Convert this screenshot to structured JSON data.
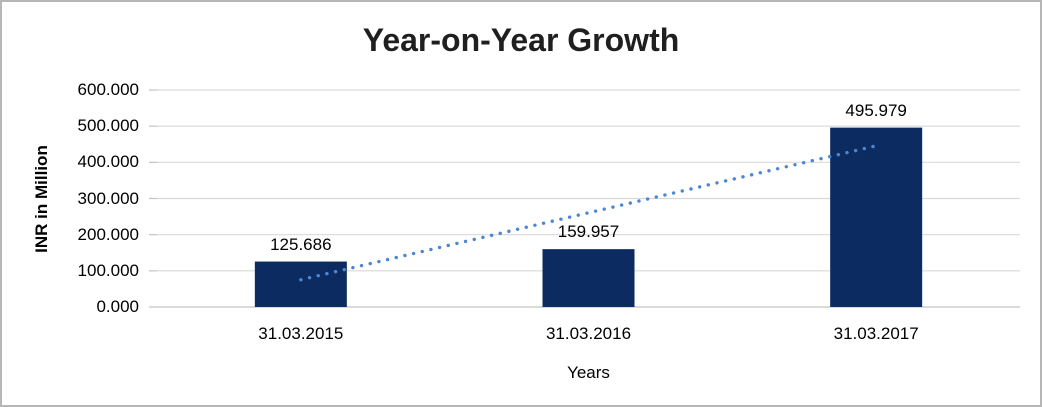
{
  "chart_data": {
    "type": "bar",
    "title": "Year-on-Year Growth",
    "xlabel": "Years",
    "ylabel": "INR in Million",
    "categories": [
      "31.03.2015",
      "31.03.2016",
      "31.03.2017"
    ],
    "values": [
      125.686,
      159.957,
      495.979
    ],
    "data_labels": [
      "125.686",
      "159.957",
      "495.979"
    ],
    "y_ticks": [
      "0.000",
      "100.000",
      "200.000",
      "300.000",
      "400.000",
      "500.000",
      "600.000"
    ],
    "ylim": [
      0,
      600
    ],
    "grid": true,
    "legend": "none",
    "bar_color": "#0c2b61",
    "gridline_color": "#d9d9d9",
    "axis_line_color": "#c3c3c3",
    "trendline": {
      "type": "linear",
      "style": "dotted",
      "color": "#4e86d4"
    }
  }
}
